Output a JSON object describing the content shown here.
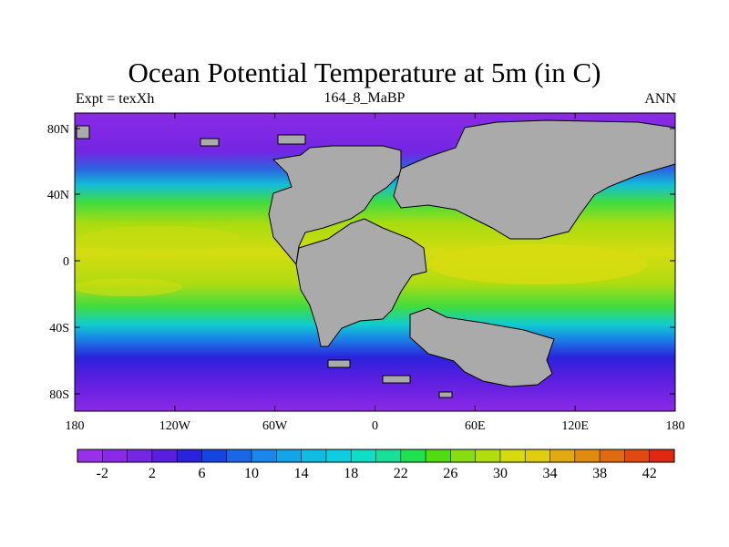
{
  "title": "Ocean Potential Temperature at 5m (in C)",
  "left_string": "Expt = texXh",
  "center_string": "164_8_MaBP",
  "right_string": "ANN",
  "lat_labels": [
    "80N",
    "40N",
    "0",
    "40S",
    "80S"
  ],
  "lon_labels": [
    "180",
    "120W",
    "60W",
    "0",
    "60E",
    "120E",
    "180"
  ],
  "colorbar": {
    "labels": [
      "-2",
      "2",
      "6",
      "10",
      "14",
      "18",
      "22",
      "26",
      "30",
      "34",
      "38",
      "42"
    ],
    "colors": [
      "#9a30e8",
      "#8a2ae6",
      "#7426e2",
      "#5a1ee0",
      "#2a22dc",
      "#1544e0",
      "#1a66e6",
      "#1a88ea",
      "#14a4e8",
      "#10bce4",
      "#10cce0",
      "#10dcc8",
      "#18e09a",
      "#20e050",
      "#50dc10",
      "#88dc10",
      "#b0dc10",
      "#d4dc10",
      "#e0cc10",
      "#e0aa10",
      "#e08a10",
      "#e06a10",
      "#e04a10",
      "#e02810"
    ]
  },
  "land_color": "#aaaaaa"
}
